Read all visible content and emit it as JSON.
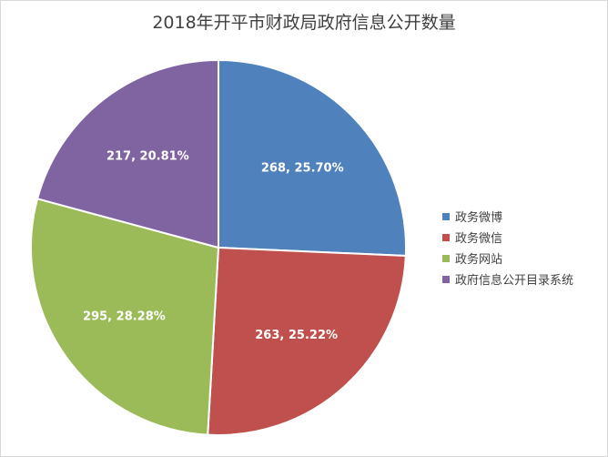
{
  "chart_data": {
    "type": "pie",
    "title": "2018年开平市财政局政府信息公开数量",
    "categories": [
      "政务微博",
      "政务微信",
      "政务网站",
      "政府信息公开目录系统"
    ],
    "values": [
      268,
      263,
      295,
      217
    ],
    "percent_labels": [
      "25.70%",
      "25.22%",
      "28.28%",
      "20.81%"
    ],
    "data_labels": [
      "268, 25.70%",
      "263, 25.22%",
      "295, 28.28%",
      "217, 20.81%"
    ],
    "colors": [
      "#4f81bd",
      "#c0504d",
      "#9bbb59",
      "#8064a2"
    ],
    "legend_position": "right"
  }
}
